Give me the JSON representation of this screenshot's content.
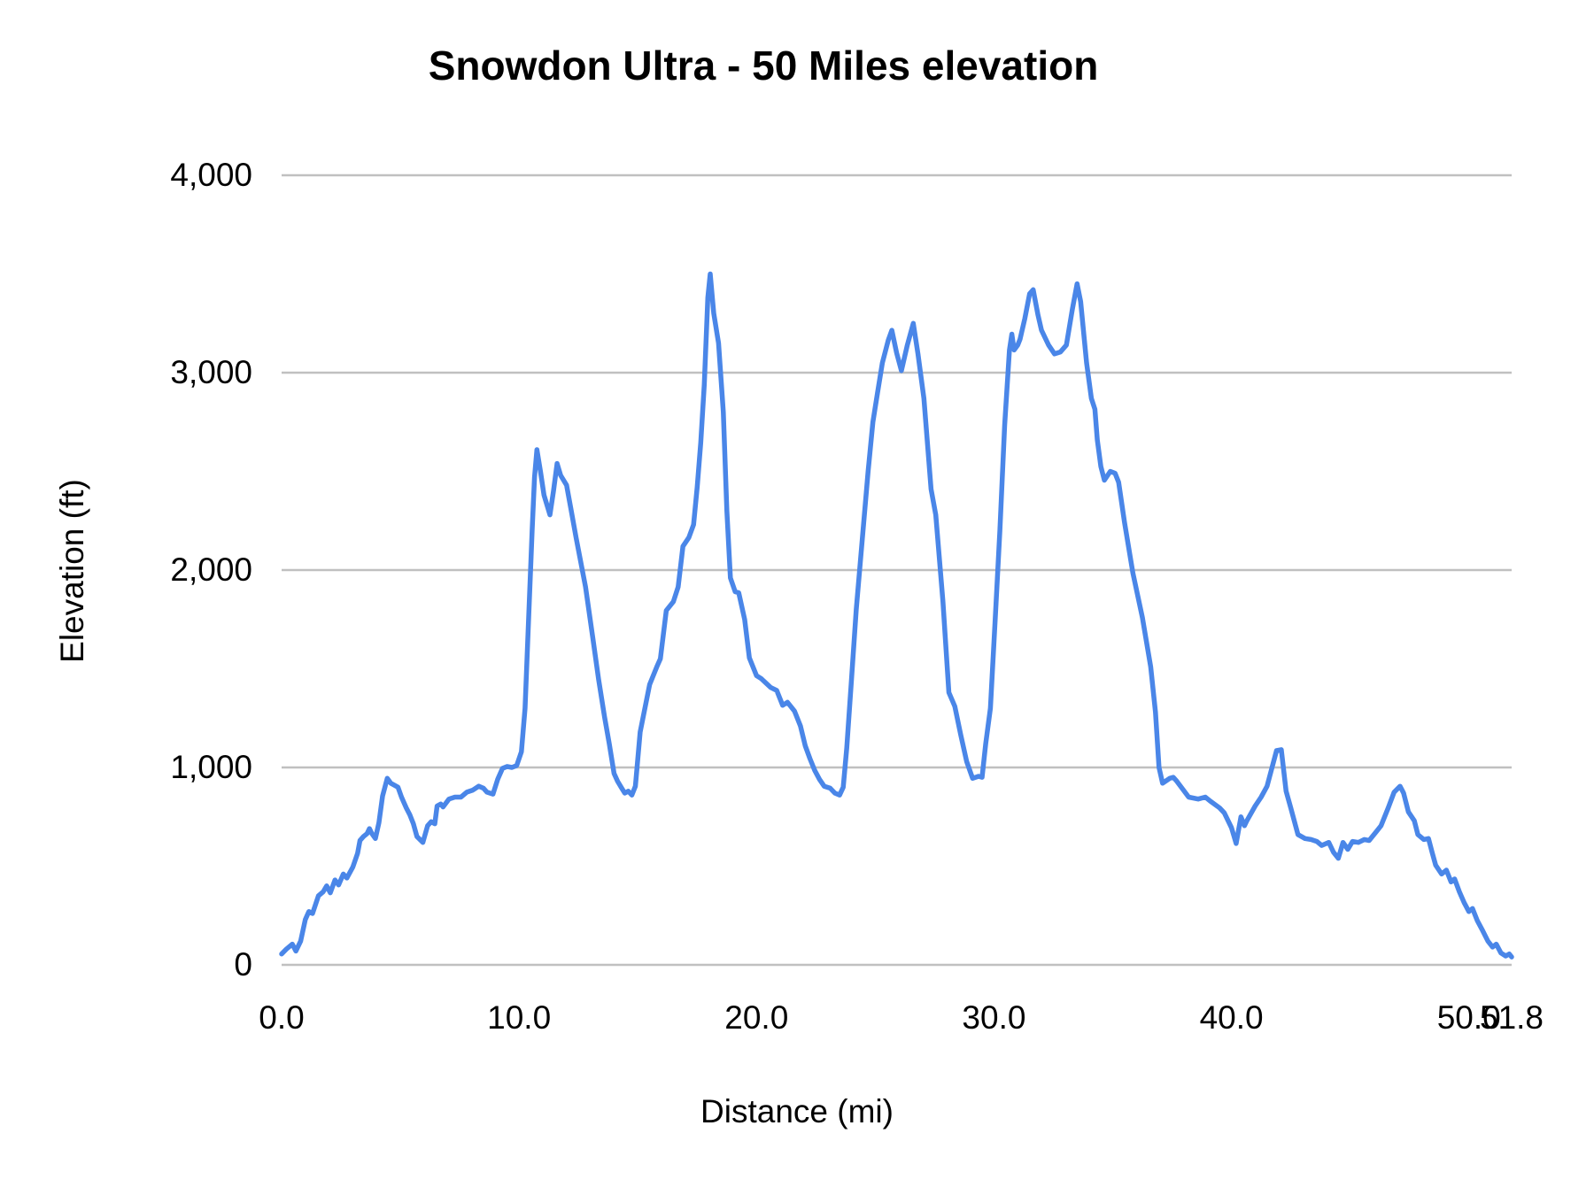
{
  "chart": {
    "title": "Snowdon Ultra - 50 Miles elevation",
    "x_axis_title": "Distance (mi)",
    "y_axis_title": "Elevation (ft)"
  },
  "colors": {
    "line": "#4a86e8",
    "grid": "#c0c0c0",
    "text": "#000000",
    "background": "#ffffff"
  },
  "chart_data": {
    "type": "line",
    "title": "Snowdon Ultra - 50 Miles elevation",
    "xlabel": "Distance (mi)",
    "ylabel": "Elevation (ft)",
    "xlim": [
      0,
      51.8
    ],
    "ylim": [
      0,
      4000
    ],
    "grid": "horizontal",
    "legend": "none",
    "x_ticks": [
      {
        "value": 0,
        "label": "0.0"
      },
      {
        "value": 10,
        "label": "10.0"
      },
      {
        "value": 20,
        "label": "20.0"
      },
      {
        "value": 30,
        "label": "30.0"
      },
      {
        "value": 40,
        "label": "40.0"
      },
      {
        "value": 50,
        "label": "50.0"
      },
      {
        "value": 51.8,
        "label": "51.8"
      }
    ],
    "y_ticks": [
      {
        "value": 0,
        "label": "0"
      },
      {
        "value": 1000,
        "label": "1,000"
      },
      {
        "value": 2000,
        "label": "2,000"
      },
      {
        "value": 3000,
        "label": "3,000"
      },
      {
        "value": 4000,
        "label": "4,000"
      }
    ],
    "series": [
      {
        "name": "Elevation",
        "x": [
          0,
          0.2,
          0.45,
          0.6,
          0.8,
          1.0,
          1.15,
          1.3,
          1.55,
          1.75,
          1.9,
          2.05,
          2.25,
          2.4,
          2.6,
          2.75,
          3.0,
          3.2,
          3.3,
          3.45,
          3.6,
          3.7,
          3.8,
          3.95,
          4.1,
          4.25,
          4.45,
          4.6,
          4.9,
          5.05,
          5.25,
          5.4,
          5.55,
          5.7,
          5.95,
          6.15,
          6.3,
          6.45,
          6.55,
          6.7,
          6.8,
          7.05,
          7.3,
          7.55,
          7.8,
          8.05,
          8.3,
          8.5,
          8.65,
          8.9,
          9.1,
          9.3,
          9.5,
          9.7,
          9.9,
          10.1,
          10.25,
          10.4,
          10.55,
          10.65,
          10.75,
          10.9,
          11.05,
          11.3,
          11.45,
          11.6,
          11.75,
          12.0,
          12.2,
          12.4,
          12.8,
          13.1,
          13.35,
          13.6,
          13.8,
          14.0,
          14.15,
          14.3,
          14.45,
          14.6,
          14.75,
          14.9,
          15.1,
          15.5,
          15.8,
          15.95,
          16.2,
          16.5,
          16.7,
          16.9,
          17.15,
          17.35,
          17.5,
          17.65,
          17.8,
          17.95,
          18.05,
          18.2,
          18.4,
          18.6,
          18.75,
          18.9,
          19.1,
          19.25,
          19.5,
          19.7,
          20.0,
          20.2,
          20.6,
          20.85,
          21.1,
          21.3,
          21.6,
          21.85,
          22.05,
          22.25,
          22.45,
          22.65,
          22.85,
          23.1,
          23.3,
          23.5,
          23.65,
          23.8,
          24.0,
          24.2,
          24.45,
          24.7,
          24.9,
          25.1,
          25.3,
          25.55,
          25.7,
          25.9,
          26.1,
          26.35,
          26.6,
          26.8,
          27.05,
          27.35,
          27.55,
          27.85,
          28.1,
          28.35,
          28.6,
          28.85,
          29.1,
          29.35,
          29.5,
          29.65,
          29.85,
          30.05,
          30.25,
          30.45,
          30.65,
          30.75,
          30.85,
          31.0,
          31.1,
          31.3,
          31.5,
          31.65,
          31.85,
          32.0,
          32.3,
          32.55,
          32.8,
          33.05,
          33.3,
          33.5,
          33.65,
          33.9,
          34.1,
          34.25,
          34.35,
          34.5,
          34.65,
          34.9,
          35.1,
          35.25,
          35.5,
          35.85,
          36.25,
          36.6,
          36.8,
          36.95,
          37.1,
          37.4,
          37.55,
          37.7,
          38.2,
          38.6,
          38.9,
          39.1,
          39.5,
          39.7,
          40.0,
          40.2,
          40.4,
          40.55,
          40.65,
          41.0,
          41.25,
          41.5,
          41.9,
          42.1,
          42.3,
          42.5,
          42.8,
          43.1,
          43.35,
          43.6,
          43.8,
          44.1,
          44.3,
          44.5,
          44.7,
          44.9,
          45.1,
          45.35,
          45.6,
          45.8,
          46.1,
          46.3,
          46.6,
          46.85,
          47.1,
          47.25,
          47.45,
          47.7,
          47.85,
          48.1,
          48.3,
          48.45,
          48.6,
          48.85,
          49.05,
          49.25,
          49.4,
          49.6,
          49.8,
          50.0,
          50.15,
          50.35,
          50.55,
          50.8,
          51.0,
          51.15,
          51.35,
          51.55,
          51.7,
          51.8
        ],
        "y": [
          55,
          80,
          105,
          70,
          120,
          230,
          270,
          260,
          350,
          370,
          400,
          365,
          430,
          405,
          460,
          440,
          495,
          565,
          630,
          650,
          665,
          690,
          665,
          640,
          720,
          855,
          945,
          920,
          900,
          850,
          795,
          760,
          715,
          650,
          620,
          705,
          725,
          715,
          805,
          815,
          800,
          840,
          850,
          850,
          875,
          885,
          905,
          895,
          875,
          865,
          940,
          995,
          1005,
          1000,
          1010,
          1080,
          1300,
          1750,
          2200,
          2470,
          2610,
          2500,
          2380,
          2280,
          2400,
          2540,
          2480,
          2430,
          2300,
          2165,
          1915,
          1660,
          1445,
          1255,
          1120,
          970,
          930,
          900,
          870,
          880,
          860,
          905,
          1180,
          1420,
          1510,
          1550,
          1795,
          1840,
          1915,
          2120,
          2165,
          2230,
          2420,
          2645,
          2940,
          3380,
          3500,
          3300,
          3150,
          2800,
          2300,
          1960,
          1890,
          1885,
          1750,
          1555,
          1465,
          1450,
          1405,
          1390,
          1315,
          1330,
          1285,
          1210,
          1110,
          1045,
          985,
          940,
          905,
          895,
          870,
          860,
          900,
          1100,
          1450,
          1800,
          2150,
          2500,
          2750,
          2900,
          3050,
          3165,
          3215,
          3100,
          3010,
          3140,
          3250,
          3095,
          2870,
          2410,
          2280,
          1840,
          1380,
          1310,
          1165,
          1030,
          945,
          955,
          950,
          1120,
          1300,
          1750,
          2200,
          2735,
          3115,
          3195,
          3115,
          3140,
          3170,
          3275,
          3400,
          3420,
          3295,
          3215,
          3140,
          3095,
          3105,
          3140,
          3320,
          3450,
          3360,
          3050,
          2870,
          2815,
          2660,
          2525,
          2455,
          2500,
          2490,
          2445,
          2240,
          1985,
          1760,
          1510,
          1280,
          1000,
          920,
          945,
          950,
          930,
          850,
          840,
          850,
          830,
          795,
          770,
          695,
          615,
          750,
          705,
          730,
          805,
          850,
          905,
          1085,
          1090,
          880,
          795,
          660,
          640,
          635,
          625,
          605,
          620,
          570,
          540,
          620,
          585,
          625,
          620,
          635,
          630,
          675,
          705,
          795,
          875,
          905,
          870,
          775,
          730,
          660,
          635,
          640,
          570,
          505,
          460,
          480,
          420,
          435,
          370,
          315,
          270,
          285,
          225,
          180,
          120,
          90,
          105,
          60,
          45,
          55,
          40
        ]
      }
    ]
  }
}
